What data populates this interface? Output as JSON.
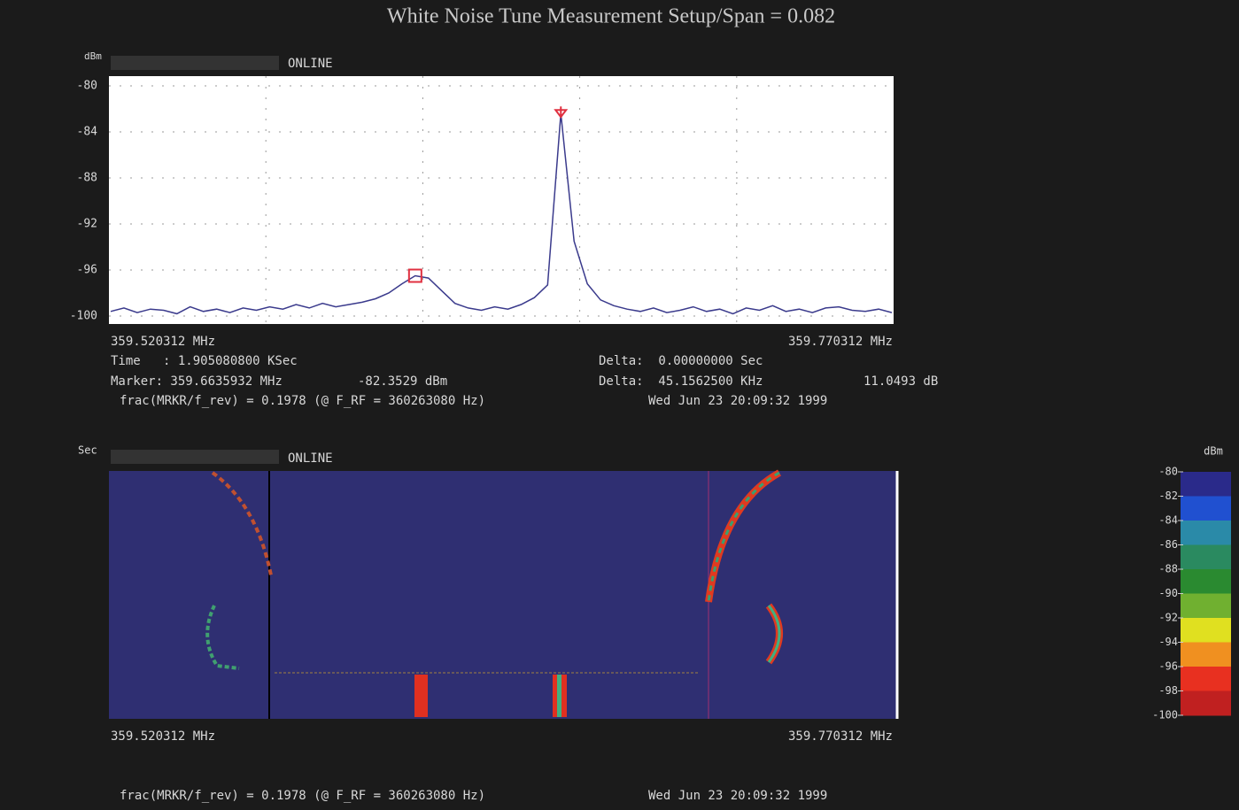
{
  "title": "White Noise Tune Measurement Setup/Span = 0.082",
  "spectrum": {
    "unit": "dBm",
    "status": "ONLINE",
    "ylim": [
      -100,
      -80
    ],
    "yticks": [
      -80,
      -84,
      -88,
      -92,
      -96,
      -100
    ],
    "trace_color": "#3a3a8c",
    "marker_color": "#e03040",
    "values": [
      -99.6,
      -99.3,
      -99.7,
      -99.4,
      -99.5,
      -99.8,
      -99.2,
      -99.6,
      -99.4,
      -99.7,
      -99.3,
      -99.5,
      -99.2,
      -99.4,
      -99.0,
      -99.3,
      -98.9,
      -99.2,
      -99.0,
      -98.8,
      -98.5,
      -98.0,
      -97.2,
      -96.5,
      -96.7,
      -97.8,
      -98.9,
      -99.3,
      -99.5,
      -99.2,
      -99.4,
      -99.0,
      -98.4,
      -97.3,
      -82.4,
      -93.5,
      -97.2,
      -98.6,
      -99.1,
      -99.4,
      -99.6,
      -99.3,
      -99.7,
      -99.5,
      -99.2,
      -99.6,
      -99.4,
      -99.8,
      -99.3,
      -99.5,
      -99.1,
      -99.6,
      -99.4,
      -99.7,
      -99.3,
      -99.2,
      -99.5,
      -99.6,
      -99.4,
      -99.7
    ],
    "x_start": "359.520312 MHz",
    "x_end": "359.770312 MHz"
  },
  "readout": {
    "time": "Time   : 1.905080800 KSec",
    "delta_time": "Delta:  0.00000000 Sec",
    "marker": "Marker: 359.6635932 MHz",
    "marker_level": "-82.3529 dBm",
    "delta_freq": "Delta:  45.1562500 KHz",
    "delta_level": "11.0493 dB",
    "frac": "frac(MRKR/f_rev) = 0.1978 (@ F_RF = 360263080 Hz)",
    "date": "Wed Jun 23 20:09:32 1999"
  },
  "waterfall": {
    "unit": "Sec",
    "status": "ONLINE",
    "x_start": "359.520312 MHz",
    "x_end": "359.770312 MHz",
    "frac": "frac(MRKR/f_rev) = 0.1978 (@ F_RF = 360263080 Hz)",
    "date": "Wed Jun 23 20:09:32 1999"
  },
  "colorbar": {
    "unit": "dBm",
    "ticks": [
      -80,
      -82,
      -84,
      -86,
      -88,
      -90,
      -92,
      -94,
      -96,
      -98,
      -100
    ],
    "colors": [
      "#2a2a8a",
      "#2050d0",
      "#2a8aa8",
      "#2a8a60",
      "#2a8a30",
      "#70b030",
      "#e0e020",
      "#f09020",
      "#e83020",
      "#c02020"
    ]
  }
}
